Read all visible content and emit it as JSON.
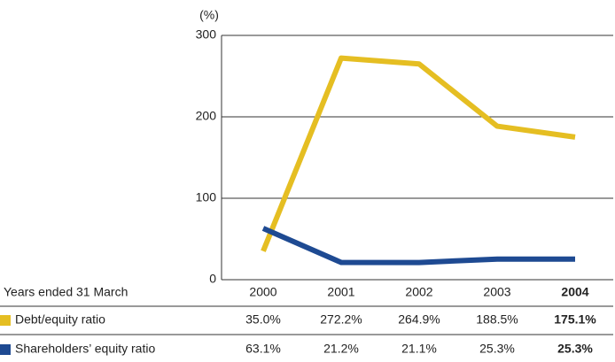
{
  "chart_data": {
    "type": "line",
    "y_label": "(%)",
    "table_header": "Years ended 31 March",
    "categories": [
      "2000",
      "2001",
      "2002",
      "2003",
      "2004"
    ],
    "series": [
      {
        "name": "Debt/equity ratio",
        "color": "#e5be22",
        "values": [
          35.0,
          272.2,
          264.9,
          188.5,
          175.1
        ],
        "value_labels": [
          "35.0%",
          "272.2%",
          "264.9%",
          "188.5%",
          "175.1%"
        ]
      },
      {
        "name": "Shareholders’ equity ratio",
        "color": "#1e4a92",
        "values": [
          63.1,
          21.2,
          21.1,
          25.3,
          25.3
        ],
        "value_labels": [
          "63.1%",
          "21.2%",
          "21.1%",
          "25.3%",
          "25.3%"
        ]
      }
    ],
    "ylim": [
      0,
      300
    ],
    "yticks": [
      0,
      100,
      200,
      300
    ],
    "grid": true
  }
}
